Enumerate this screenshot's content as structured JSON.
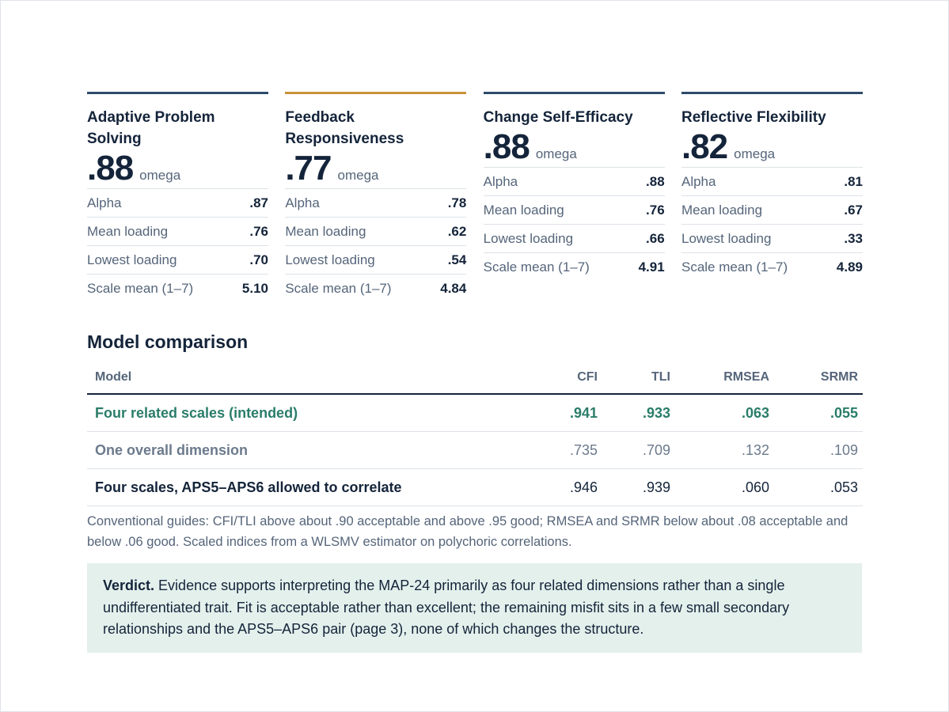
{
  "scales": [
    {
      "name": "Adaptive Problem Solving",
      "omega": ".88",
      "omega_label": "omega",
      "stats": [
        {
          "label": "Alpha",
          "value": ".87"
        },
        {
          "label": "Mean loading",
          "value": ".76"
        },
        {
          "label": "Lowest loading",
          "value": ".70"
        },
        {
          "label": "Scale mean (1–7)",
          "value": "5.10"
        }
      ]
    },
    {
      "name": "Feedback Responsiveness",
      "omega": ".77",
      "omega_label": "omega",
      "stats": [
        {
          "label": "Alpha",
          "value": ".78"
        },
        {
          "label": "Mean loading",
          "value": ".62"
        },
        {
          "label": "Lowest loading",
          "value": ".54"
        },
        {
          "label": "Scale mean (1–7)",
          "value": "4.84"
        }
      ]
    },
    {
      "name": "Change Self-Efficacy",
      "omega": ".88",
      "omega_label": "omega",
      "stats": [
        {
          "label": "Alpha",
          "value": ".88"
        },
        {
          "label": "Mean loading",
          "value": ".76"
        },
        {
          "label": "Lowest loading",
          "value": ".66"
        },
        {
          "label": "Scale mean (1–7)",
          "value": "4.91"
        }
      ]
    },
    {
      "name": "Reflective Flexibility",
      "omega": ".82",
      "omega_label": "omega",
      "stats": [
        {
          "label": "Alpha",
          "value": ".81"
        },
        {
          "label": "Mean loading",
          "value": ".67"
        },
        {
          "label": "Lowest loading",
          "value": ".33"
        },
        {
          "label": "Scale mean (1–7)",
          "value": "4.89"
        }
      ]
    }
  ],
  "colors": {
    "accent_bar": "#c9923a",
    "default_bar": "#2e4a6b",
    "intended_row": "#2a7d6a",
    "verdict_bg": "#e4f0ec"
  },
  "comparison": {
    "title": "Model comparison",
    "headers": {
      "model": "Model",
      "cfi": "CFI",
      "tli": "TLI",
      "rmsea": "RMSEA",
      "srmr": "SRMR"
    },
    "rows": [
      {
        "model": "Four related scales (intended)",
        "cfi": ".941",
        "tli": ".933",
        "rmsea": ".063",
        "srmr": ".055"
      },
      {
        "model": "One overall dimension",
        "cfi": ".735",
        "tli": ".709",
        "rmsea": ".132",
        "srmr": ".109"
      },
      {
        "model": "Four scales, APS5–APS6 allowed to correlate",
        "cfi": ".946",
        "tli": ".939",
        "rmsea": ".060",
        "srmr": ".053"
      }
    ],
    "guide": "Conventional guides: CFI/TLI above about .90 acceptable and above .95 good; RMSEA and SRMR below about .08 acceptable and below .06 good. Scaled indices from a WLSMV estimator on polychoric correlations."
  },
  "verdict": {
    "label": "Verdict.",
    "text": "Evidence supports interpreting the MAP-24 primarily as four related dimensions rather than a single undifferentiated trait. Fit is acceptable rather than excellent; the remaining misfit sits in a few small secondary relationships and the APS5–APS6 pair (page 3), none of which changes the structure."
  }
}
